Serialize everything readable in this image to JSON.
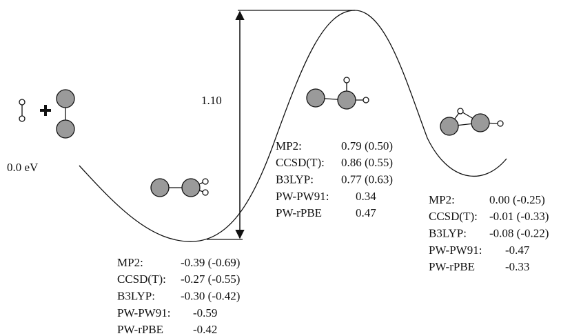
{
  "reactant_label": "0.0 eV",
  "barrier_label": "1.10",
  "tables": [
    {
      "rows": [
        {
          "method": "MP2:",
          "value": "-0.39 (-0.69)"
        },
        {
          "method": "CCSD(T):",
          "value": "-0.27 (-0.55)"
        },
        {
          "method": "B3LYP:",
          "value": "-0.30 (-0.42)"
        },
        {
          "method": "PW-PW91:",
          "value": "-0.59"
        },
        {
          "method": "PW-rPBE",
          "value": "-0.42"
        }
      ]
    },
    {
      "rows": [
        {
          "method": "MP2:",
          "value": "0.79 (0.50)"
        },
        {
          "method": "CCSD(T):",
          "value": "0.86  (0.55)"
        },
        {
          "method": "B3LYP:",
          "value": "0.77 (0.63)"
        },
        {
          "method": "PW-PW91:",
          "value": "0.34"
        },
        {
          "method": "PW-rPBE",
          "value": "0.47"
        }
      ]
    },
    {
      "rows": [
        {
          "method": "MP2:",
          "value": "0.00 (-0.25)"
        },
        {
          "method": "CCSD(T):",
          "value": "-0.01 (-0.33)"
        },
        {
          "method": "B3LYP:",
          "value": "-0.08 (-0.22)"
        },
        {
          "method": "PW-PW91:",
          "value": "-0.47"
        },
        {
          "method": "PW-rPBE",
          "value": "-0.33"
        }
      ]
    }
  ]
}
